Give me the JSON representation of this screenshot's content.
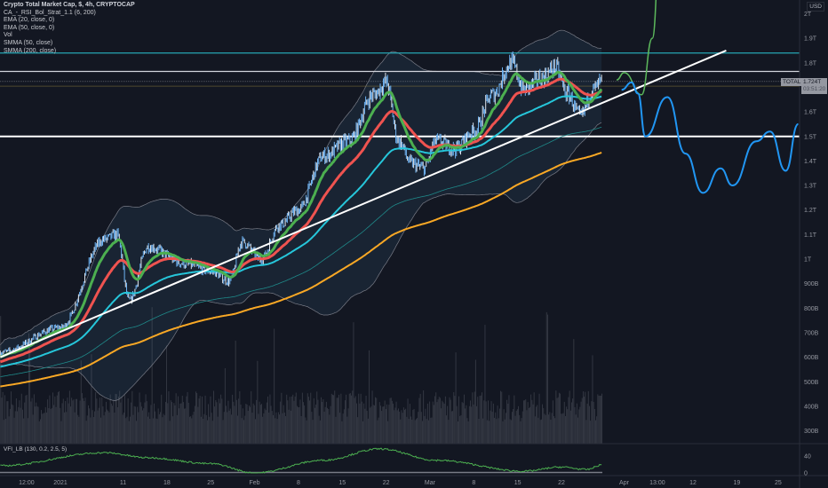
{
  "legend": {
    "title": "Crypto Total Market Cap, $, 4h, CRYPTOCAP",
    "indicators": [
      "CA_-_RSI_Bol_Strat_1.1 (6, 200)",
      "EMA (20, close, 0)",
      "EMA (50, close, 0)",
      "Vol",
      "SMMA (50, close)",
      "SMMA (200, close)"
    ]
  },
  "vfi_label": "VFI_LB (130, 0.2, 2.5, 5)",
  "currency": "USD",
  "symbol_tag": "TOTAL",
  "last_price": "1.724T",
  "countdown": "03:51:20",
  "colors": {
    "bg": "#131722",
    "ema20": "#4caf50",
    "ema50": "#ef5350",
    "smma50": "#26c6da",
    "smma200": "#f9a825",
    "band": "#787b86",
    "vfi": "#4caf50",
    "drawing_green": "#5cb85c",
    "drawing_blue": "#2196f3"
  },
  "chart_data": {
    "type": "line",
    "title": "Crypto Total Market Cap, $, 4h, CRYPTOCAP",
    "units": "billion USD",
    "x_unit": "days since 2021-01-01",
    "ylim": [
      250,
      2050
    ],
    "price_keypoints": [
      [
        -9.6,
        620
      ],
      [
        0,
        720
      ],
      [
        7,
        1080
      ],
      [
        9,
        1100
      ],
      [
        11,
        830
      ],
      [
        14,
        1050
      ],
      [
        20,
        980
      ],
      [
        24,
        950
      ],
      [
        27,
        910
      ],
      [
        29,
        1070
      ],
      [
        32,
        1000
      ],
      [
        35,
        1140
      ],
      [
        38,
        1200
      ],
      [
        42,
        1420
      ],
      [
        46,
        1480
      ],
      [
        50,
        1670
      ],
      [
        52,
        1720
      ],
      [
        54,
        1480
      ],
      [
        56,
        1390
      ],
      [
        58,
        1370
      ],
      [
        60,
        1480
      ],
      [
        63,
        1450
      ],
      [
        66,
        1520
      ],
      [
        69,
        1670
      ],
      [
        72,
        1800
      ],
      [
        74,
        1690
      ],
      [
        77,
        1740
      ],
      [
        79,
        1780
      ],
      [
        81,
        1670
      ],
      [
        83,
        1580
      ],
      [
        85,
        1690
      ],
      [
        86.5,
        1724
      ]
    ],
    "vfi_keypoints": [
      [
        -9.6,
        17
      ],
      [
        7,
        48
      ],
      [
        14,
        36
      ],
      [
        24,
        22
      ],
      [
        31,
        0
      ],
      [
        42,
        30
      ],
      [
        51,
        57
      ],
      [
        60,
        30
      ],
      [
        74,
        4
      ],
      [
        80,
        14
      ],
      [
        84,
        8
      ],
      [
        86.5,
        19
      ]
    ],
    "vfi_ticks": [
      {
        "label": "40",
        "value": 40
      },
      {
        "label": "0",
        "value": 0
      }
    ],
    "horizontal_levels": [
      {
        "value": 1840,
        "color": "#26a6b5"
      },
      {
        "value": 1765,
        "color": "#d1d4dc"
      },
      {
        "value": 1500,
        "color": "#ffffff"
      }
    ],
    "trendline": [
      [
        -9.6,
        600
      ],
      [
        106.3,
        1850
      ]
    ],
    "projection_green": [
      [
        88.8,
        1730
      ],
      [
        90,
        1760
      ],
      [
        92.8,
        1670
      ],
      [
        94.5,
        1900
      ],
      [
        95.8,
        2300
      ]
    ],
    "projection_blue": [
      [
        89.6,
        1690
      ],
      [
        91.2,
        1720
      ],
      [
        92.2,
        1675
      ],
      [
        93.4,
        1500
      ],
      [
        96.9,
        1660
      ],
      [
        99.8,
        1430
      ],
      [
        102.6,
        1270
      ],
      [
        105.4,
        1370
      ],
      [
        107.3,
        1300
      ],
      [
        111.1,
        1480
      ],
      [
        113.3,
        1520
      ],
      [
        115.8,
        1360
      ],
      [
        117.8,
        1550
      ]
    ],
    "y_ticks": [
      {
        "label": "2T",
        "value": 2000
      },
      {
        "label": "1.9T",
        "value": 1900
      },
      {
        "label": "1.8T",
        "value": 1800
      },
      {
        "label": "1.6T",
        "value": 1600
      },
      {
        "label": "1.5T",
        "value": 1500
      },
      {
        "label": "1.4T",
        "value": 1400
      },
      {
        "label": "1.3T",
        "value": 1300
      },
      {
        "label": "1.2T",
        "value": 1200
      },
      {
        "label": "1.1T",
        "value": 1100
      },
      {
        "label": "1T",
        "value": 1000
      },
      {
        "label": "900B",
        "value": 900
      },
      {
        "label": "800B",
        "value": 800
      },
      {
        "label": "700B",
        "value": 700
      },
      {
        "label": "600B",
        "value": 600
      },
      {
        "label": "500B",
        "value": 500
      },
      {
        "label": "400B",
        "value": 400
      },
      {
        "label": "300B",
        "value": 300
      }
    ],
    "x_ticks": [
      {
        "label": "12:00",
        "day": -5.4
      },
      {
        "label": "2021",
        "day": 0
      },
      {
        "label": "11",
        "day": 10
      },
      {
        "label": "18",
        "day": 17
      },
      {
        "label": "25",
        "day": 24
      },
      {
        "label": "Feb",
        "day": 31
      },
      {
        "label": "8",
        "day": 38
      },
      {
        "label": "15",
        "day": 45
      },
      {
        "label": "22",
        "day": 52
      },
      {
        "label": "Mar",
        "day": 59
      },
      {
        "label": "8",
        "day": 66
      },
      {
        "label": "15",
        "day": 73
      },
      {
        "label": "22",
        "day": 80
      },
      {
        "label": "Apr",
        "day": 90
      },
      {
        "label": "13:00",
        "day": 95.3
      },
      {
        "label": "12",
        "day": 101
      },
      {
        "label": "19",
        "day": 108
      },
      {
        "label": "25",
        "day": 114.6
      }
    ]
  }
}
